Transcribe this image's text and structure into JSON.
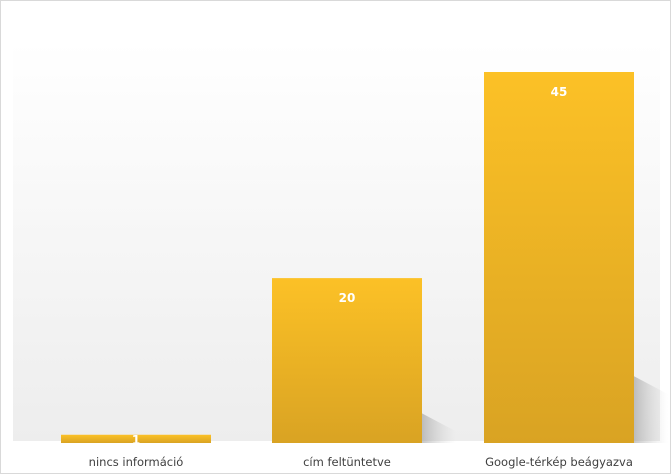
{
  "chart_data": {
    "type": "bar",
    "categories": [
      "nincs információ",
      "cím feltüntetve",
      "Google-térkép beágyazva"
    ],
    "values": [
      1,
      20,
      45
    ],
    "title": "",
    "xlabel": "",
    "ylabel": "",
    "ylim": [
      0,
      48
    ],
    "grid": false,
    "legend": "none",
    "data_labels": "inside-top",
    "colors": {
      "bar_top": "#FCC126",
      "bar_bottom": "#D9A323",
      "background_top": "#FFFFFF",
      "background_bottom": "#EDEDED",
      "label_text": "#404040",
      "value_text": "#FFFFFF"
    }
  }
}
